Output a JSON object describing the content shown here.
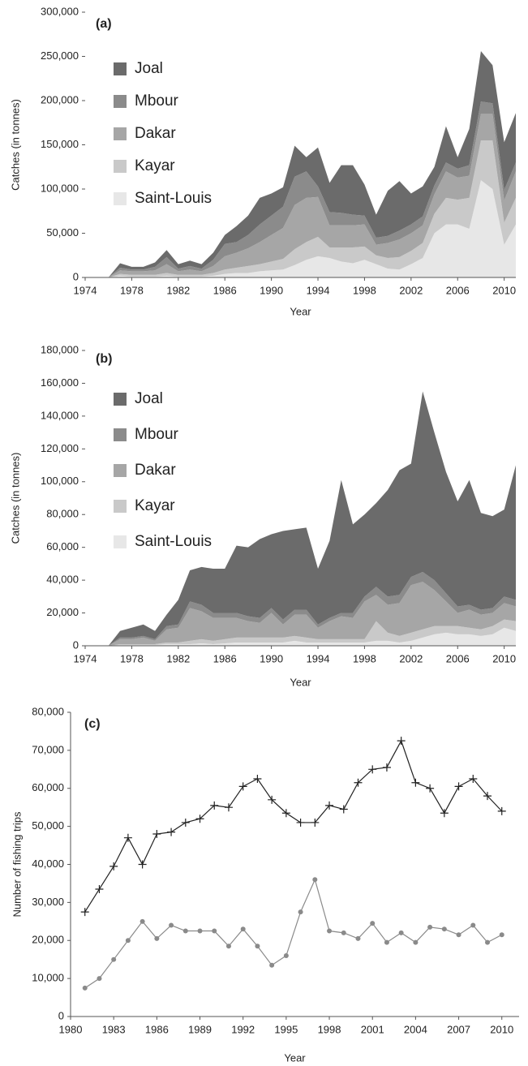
{
  "chart_data": [
    {
      "type": "area",
      "stacked": true,
      "panel_label": "(a)",
      "x_label": "Year",
      "y_label": "Catches (in tonnes)",
      "x": [
        1974,
        1975,
        1976,
        1977,
        1978,
        1979,
        1980,
        1981,
        1982,
        1983,
        1984,
        1985,
        1986,
        1987,
        1988,
        1989,
        1990,
        1991,
        1992,
        1993,
        1994,
        1995,
        1996,
        1997,
        1998,
        1999,
        2000,
        2001,
        2002,
        2003,
        2004,
        2005,
        2006,
        2007,
        2008,
        2009,
        2010,
        2011
      ],
      "xlim": [
        1974,
        2011
      ],
      "xticks": [
        1974,
        1978,
        1982,
        1986,
        1990,
        1994,
        1998,
        2002,
        2006,
        2010
      ],
      "ylim": [
        0,
        300000
      ],
      "yticks": [
        0,
        {
          "value": 50000,
          "label": "50,000"
        },
        {
          "value": 100000,
          "label": "100,000"
        },
        {
          "value": 150000,
          "label": "150,000"
        },
        {
          "value": 200000,
          "label": "200,000"
        },
        {
          "value": 250000,
          "label": "250,000"
        },
        {
          "value": 300000,
          "label": "300,000"
        }
      ],
      "series": [
        {
          "name": "Joal",
          "color": "#6b6b6b",
          "values": [
            0,
            0,
            0,
            5000,
            3000,
            3000,
            5000,
            8000,
            5000,
            6000,
            5000,
            8000,
            10000,
            18000,
            22000,
            30000,
            25000,
            22000,
            35000,
            16000,
            44000,
            33000,
            54000,
            56000,
            35000,
            26000,
            51000,
            56000,
            35000,
            34000,
            21000,
            41000,
            13000,
            41000,
            57000,
            43000,
            54000,
            56000
          ]
        },
        {
          "name": "Mbour",
          "color": "#8b8b8b",
          "values": [
            0,
            0,
            0,
            3000,
            2000,
            2000,
            4000,
            8000,
            3000,
            4000,
            3000,
            7000,
            14000,
            12000,
            15000,
            20000,
            22000,
            24000,
            32000,
            30000,
            12000,
            15000,
            14000,
            12000,
            10000,
            8000,
            8000,
            10000,
            10000,
            10000,
            10000,
            10000,
            10000,
            12000,
            14000,
            12000,
            12000,
            10000
          ]
        },
        {
          "name": "Dakar",
          "color": "#a6a6a6",
          "values": [
            0,
            0,
            0,
            4000,
            4000,
            4000,
            5000,
            10000,
            4000,
            6000,
            4000,
            8000,
            15000,
            17000,
            20000,
            25000,
            30000,
            35000,
            50000,
            50000,
            45000,
            25000,
            25000,
            25000,
            25000,
            12000,
            17000,
            20000,
            20000,
            20000,
            22000,
            30000,
            25000,
            25000,
            30000,
            30000,
            25000,
            30000
          ]
        },
        {
          "name": "Kayar",
          "color": "#c9c9c9",
          "values": [
            0,
            0,
            0,
            2000,
            2000,
            2000,
            2000,
            3000,
            2000,
            2000,
            2000,
            3000,
            5000,
            6000,
            8000,
            8000,
            10000,
            12000,
            18000,
            20000,
            22000,
            12000,
            16000,
            18000,
            15000,
            10000,
            12000,
            14000,
            15000,
            17000,
            22000,
            30000,
            28000,
            35000,
            45000,
            55000,
            25000,
            30000
          ]
        },
        {
          "name": "Saint-Louis",
          "color": "#e7e7e7",
          "values": [
            0,
            0,
            0,
            2000,
            1000,
            1000,
            1000,
            2000,
            1000,
            1000,
            1000,
            2000,
            4000,
            5000,
            5000,
            7000,
            8000,
            9000,
            14000,
            20000,
            24000,
            22000,
            18000,
            16000,
            20000,
            15000,
            10000,
            9000,
            15000,
            22000,
            50000,
            60000,
            60000,
            55000,
            110000,
            100000,
            37000,
            60000
          ]
        }
      ]
    },
    {
      "type": "area",
      "stacked": true,
      "panel_label": "(b)",
      "x_label": "Year",
      "y_label": "Catches (in tonnes)",
      "x": [
        1974,
        1975,
        1976,
        1977,
        1978,
        1979,
        1980,
        1981,
        1982,
        1983,
        1984,
        1985,
        1986,
        1987,
        1988,
        1989,
        1990,
        1991,
        1992,
        1993,
        1994,
        1995,
        1996,
        1997,
        1998,
        1999,
        2000,
        2001,
        2002,
        2003,
        2004,
        2005,
        2006,
        2007,
        2008,
        2009,
        2010,
        2011
      ],
      "xlim": [
        1974,
        2011
      ],
      "xticks": [
        1974,
        1978,
        1982,
        1986,
        1990,
        1994,
        1998,
        2002,
        2006,
        2010
      ],
      "ylim": [
        0,
        180000
      ],
      "yticks": [
        0,
        {
          "value": 20000,
          "label": "20,000"
        },
        {
          "value": 40000,
          "label": "40,000"
        },
        {
          "value": 60000,
          "label": "60,000"
        },
        {
          "value": 80000,
          "label": "80,000"
        },
        {
          "value": 100000,
          "label": "100,000"
        },
        {
          "value": 120000,
          "label": "120,000"
        },
        {
          "value": 140000,
          "label": "140,000"
        },
        {
          "value": 160000,
          "label": "160,000"
        },
        {
          "value": 180000,
          "label": "180,000"
        }
      ],
      "series": [
        {
          "name": "Joal",
          "color": "#6b6b6b",
          "values": [
            0,
            0,
            0,
            4000,
            6000,
            7000,
            5000,
            7000,
            15000,
            19000,
            23000,
            27000,
            27000,
            41000,
            42000,
            48000,
            45000,
            54000,
            49000,
            50000,
            34000,
            47000,
            81000,
            54000,
            50000,
            51000,
            65000,
            76000,
            69000,
            110000,
            90000,
            74000,
            64000,
            76000,
            59000,
            56000,
            53000,
            82000
          ]
        },
        {
          "name": "Mbour",
          "color": "#8b8b8b",
          "values": [
            0,
            0,
            0,
            1000,
            1000,
            1000,
            1000,
            2000,
            2000,
            4000,
            4000,
            3000,
            3000,
            3000,
            3000,
            3000,
            3000,
            3000,
            3000,
            3000,
            2000,
            2000,
            2000,
            3000,
            3000,
            5000,
            5000,
            5000,
            5000,
            6000,
            6000,
            5000,
            4000,
            3000,
            3000,
            3000,
            4000,
            4000
          ]
        },
        {
          "name": "Dakar",
          "color": "#a6a6a6",
          "values": [
            0,
            0,
            0,
            3000,
            3000,
            4000,
            2000,
            8000,
            9000,
            20000,
            17000,
            14000,
            13000,
            12000,
            10000,
            9000,
            15000,
            8000,
            13000,
            14000,
            7000,
            11000,
            14000,
            13000,
            23000,
            16000,
            17000,
            20000,
            29000,
            29000,
            22000,
            15000,
            8000,
            11000,
            9000,
            8000,
            10000,
            9000
          ]
        },
        {
          "name": "Kayar",
          "color": "#c9c9c9",
          "values": [
            0,
            0,
            0,
            500,
            500,
            500,
            500,
            1000,
            1000,
            2000,
            2500,
            2000,
            2500,
            3000,
            3000,
            3000,
            3000,
            3000,
            3000,
            3000,
            2000,
            2000,
            2000,
            2000,
            2000,
            12000,
            5000,
            4000,
            5000,
            5000,
            5000,
            4000,
            5000,
            4000,
            4000,
            5000,
            5000,
            6000
          ]
        },
        {
          "name": "Saint-Louis",
          "color": "#e7e7e7",
          "values": [
            0,
            0,
            0,
            500,
            500,
            500,
            500,
            1000,
            1000,
            1000,
            1500,
            1000,
            1500,
            2000,
            2000,
            2000,
            2000,
            2000,
            3000,
            2000,
            2000,
            2000,
            2000,
            2000,
            2000,
            3000,
            3000,
            2000,
            3000,
            5000,
            7000,
            8000,
            7000,
            7000,
            6000,
            7000,
            11000,
            9000
          ]
        }
      ]
    },
    {
      "type": "line",
      "panel_label": "(c)",
      "x_label": "Year",
      "y_label": "Number of fishing trips",
      "x": [
        1981,
        1982,
        1983,
        1984,
        1985,
        1986,
        1987,
        1988,
        1989,
        1990,
        1991,
        1992,
        1993,
        1994,
        1995,
        1996,
        1997,
        1998,
        1999,
        2000,
        2001,
        2002,
        2003,
        2004,
        2005,
        2006,
        2007,
        2008,
        2009,
        2010
      ],
      "xlim": [
        1980,
        2011.2
      ],
      "xticks": [
        1980,
        1983,
        1986,
        1989,
        1992,
        1995,
        1998,
        2001,
        2004,
        2007,
        2010
      ],
      "ylim": [
        0,
        80000
      ],
      "yticks": [
        0,
        {
          "value": 10000,
          "label": "10,000"
        },
        {
          "value": 20000,
          "label": "20,000"
        },
        {
          "value": 30000,
          "label": "30,000"
        },
        {
          "value": 40000,
          "label": "40,000"
        },
        {
          "value": 50000,
          "label": "50,000"
        },
        {
          "value": 60000,
          "label": "60,000"
        },
        {
          "value": 70000,
          "label": "70,000"
        },
        {
          "value": 80000,
          "label": "80,000"
        }
      ],
      "series": [
        {
          "color": "#222222",
          "marker": "plus",
          "values": [
            27500,
            33500,
            39500,
            47000,
            40000,
            48000,
            48500,
            51000,
            52000,
            55500,
            55000,
            60500,
            62500,
            57000,
            53500,
            51000,
            51000,
            55500,
            54500,
            61500,
            65000,
            65500,
            72500,
            61500,
            60000,
            53500,
            60500,
            62500,
            58000,
            54000
          ]
        },
        {
          "color": "#8a8a8a",
          "marker": "dot",
          "values": [
            7500,
            10000,
            15000,
            20000,
            25000,
            20500,
            24000,
            22500,
            22500,
            22500,
            18500,
            23000,
            18500,
            13500,
            16000,
            27500,
            36000,
            22500,
            22000,
            20500,
            24500,
            19500,
            22000,
            19500,
            23500,
            23000,
            21500,
            24000,
            19500,
            21500
          ]
        }
      ]
    }
  ]
}
